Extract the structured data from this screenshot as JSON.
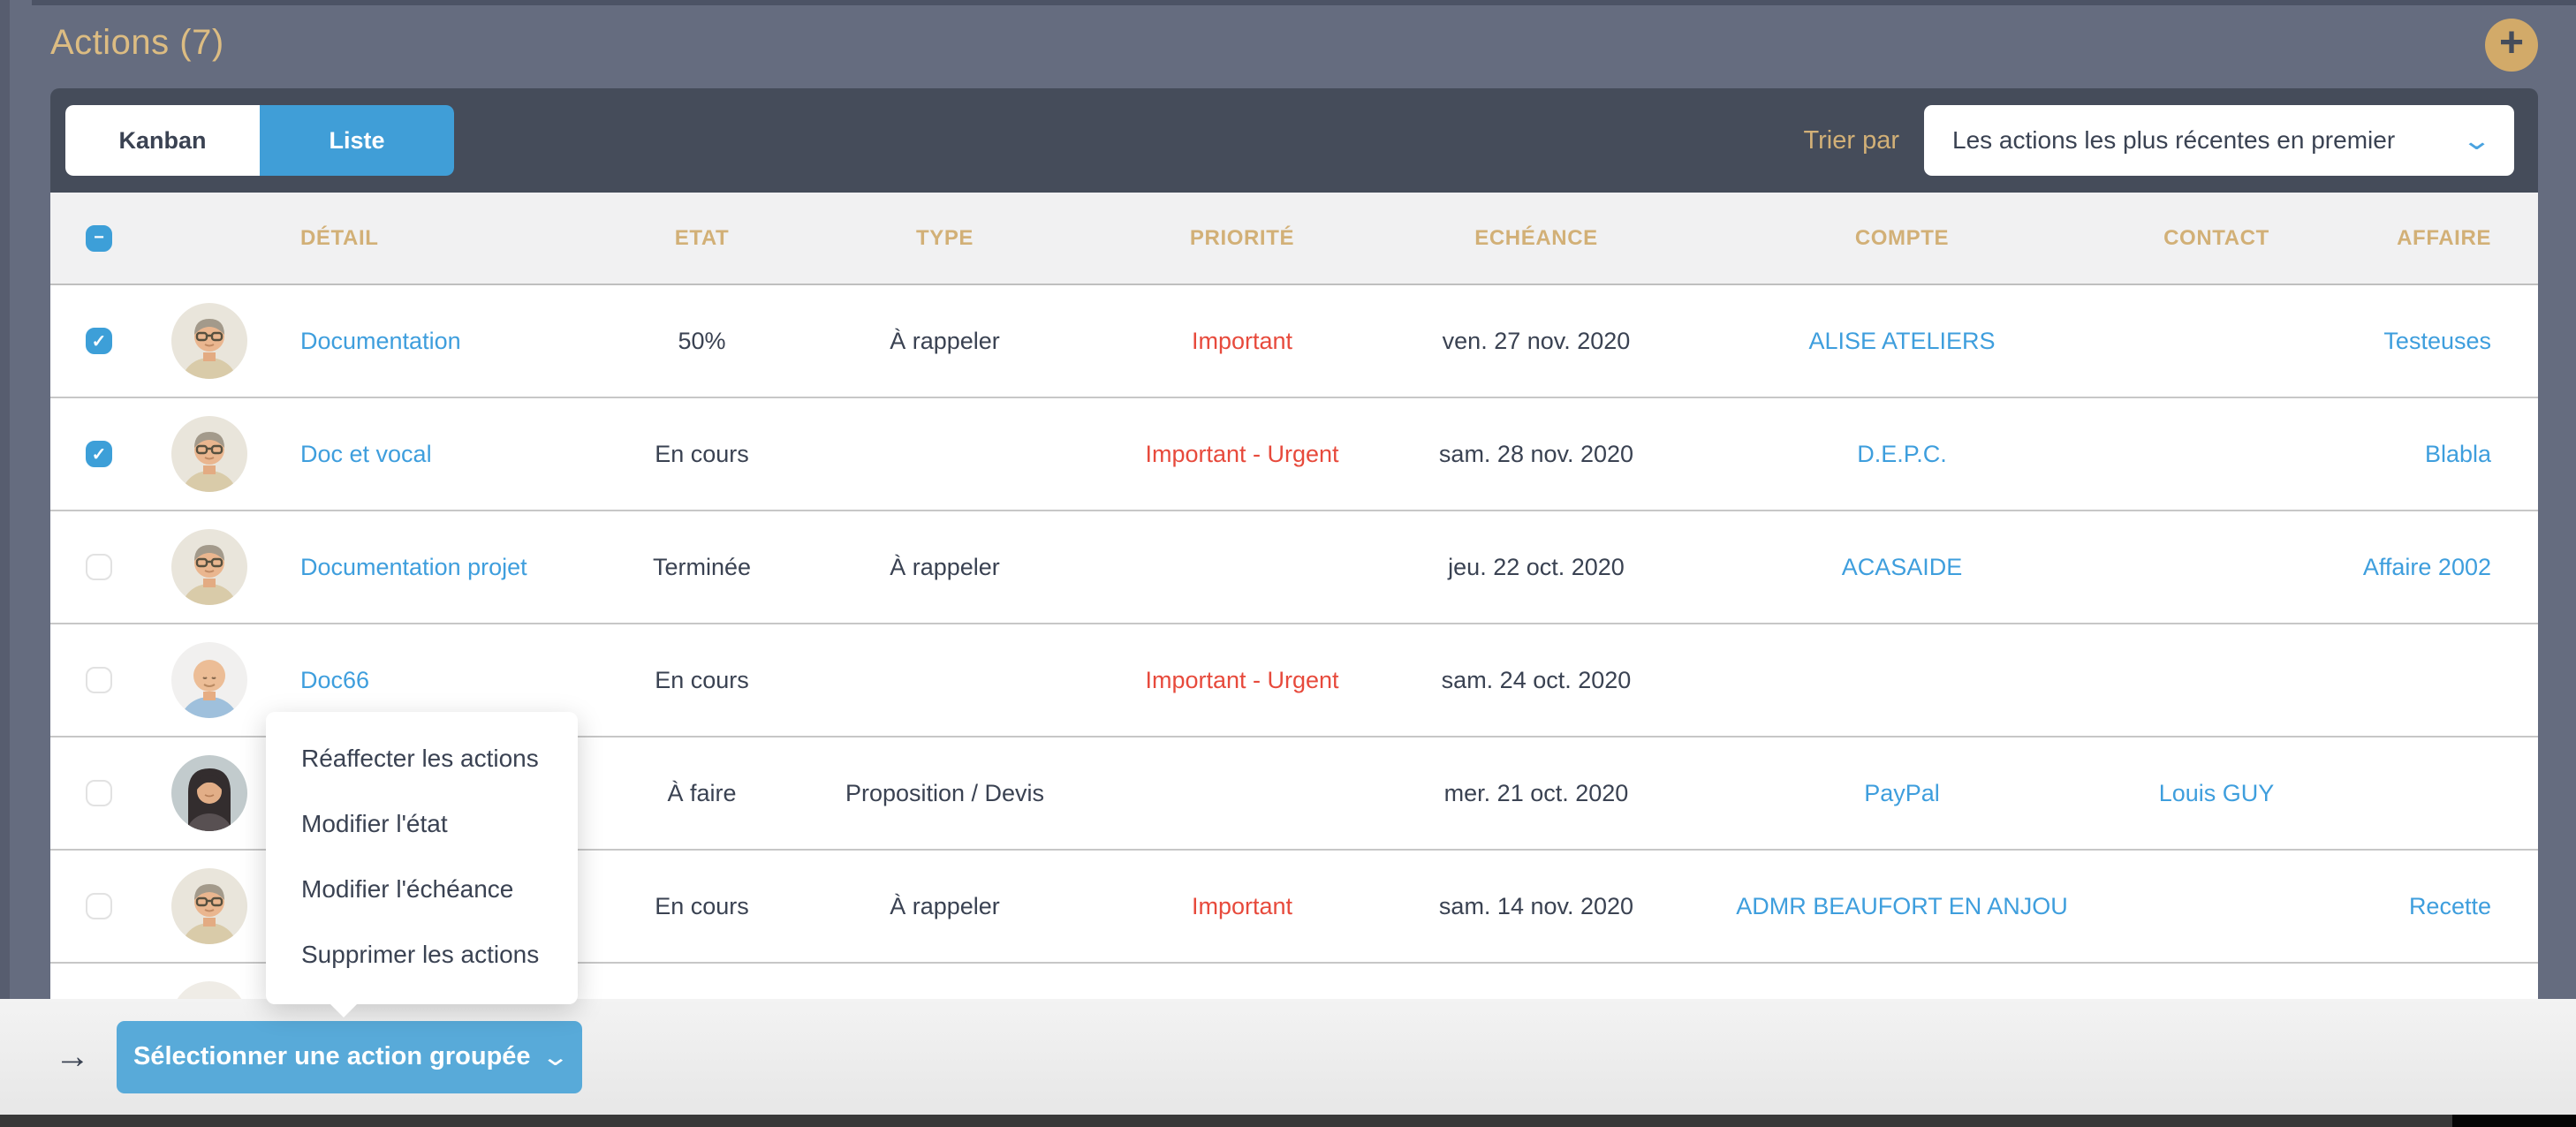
{
  "header": {
    "title": "Actions (7)"
  },
  "icons": {
    "plus_icon": "+",
    "minus_icon": "−",
    "check_icon": "✓",
    "chevron_down_icon": "⌄",
    "arrow_right_icon": "→"
  },
  "toolbar": {
    "tabs": [
      {
        "label": "Kanban",
        "active": false
      },
      {
        "label": "Liste",
        "active": true
      }
    ],
    "sort_label": "Trier par",
    "sort_value": "Les actions les plus récentes en premier"
  },
  "table": {
    "columns": [
      "DÉTAIL",
      "ETAT",
      "TYPE",
      "PRIORITÉ",
      "ECHÉANCE",
      "COMPTE",
      "CONTACT",
      "AFFAIRE"
    ],
    "rows": [
      {
        "checked": true,
        "avatar": "man-glasses",
        "detail": "Documentation",
        "etat": "50%",
        "type": "À rappeler",
        "priorite": "Important",
        "echeance": "ven. 27 nov. 2020",
        "compte": "ALISE ATELIERS",
        "contact": "",
        "affaire": "Testeuses"
      },
      {
        "checked": true,
        "avatar": "man-glasses",
        "detail": "Doc et vocal",
        "etat": "En cours",
        "type": "",
        "priorite": "Important - Urgent",
        "echeance": "sam. 28 nov. 2020",
        "compte": "D.E.P.C.",
        "contact": "",
        "affaire": "Blabla"
      },
      {
        "checked": false,
        "avatar": "man-glasses",
        "detail": "Documentation projet",
        "etat": "Terminée",
        "type": "À rappeler",
        "priorite": "",
        "echeance": "jeu. 22 oct. 2020",
        "compte": "ACASAIDE",
        "contact": "",
        "affaire": "Affaire 2002"
      },
      {
        "checked": false,
        "avatar": "man-bald",
        "detail": "Doc66",
        "etat": "En cours",
        "type": "",
        "priorite": "Important - Urgent",
        "echeance": "sam. 24 oct. 2020",
        "compte": "",
        "contact": "",
        "affaire": ""
      },
      {
        "checked": false,
        "avatar": "woman-dark-hair",
        "detail": "",
        "etat": "À faire",
        "type": "Proposition / Devis",
        "priorite": "",
        "echeance": "mer. 21 oct. 2020",
        "compte": "PayPal",
        "contact": "Louis GUY",
        "affaire": ""
      },
      {
        "checked": false,
        "avatar": "man-glasses",
        "detail": "",
        "etat": "En cours",
        "type": "À rappeler",
        "priorite": "Important",
        "echeance": "sam. 14 nov. 2020",
        "compte": "ADMR BEAUFORT EN ANJOU",
        "contact": "",
        "affaire": "Recette"
      },
      {
        "checked": false,
        "avatar": "man-partial",
        "detail": "",
        "etat": "",
        "type": "",
        "priorite": "",
        "echeance": "",
        "compte": "",
        "contact": "",
        "affaire": ""
      }
    ]
  },
  "context_menu": {
    "items": [
      "Réaffecter les actions",
      "Modifier l'état",
      "Modifier l'échéance",
      "Supprimer les actions"
    ]
  },
  "footer": {
    "bulk_button": "Sélectionner une action groupée"
  },
  "colors": {
    "accent_gold": "#d2b077",
    "accent_blue": "#409ed7",
    "link_blue": "#3e9edd",
    "priority_red": "#e74a3c",
    "toolbar_dark": "#454c5a",
    "background_slate": "#656c7f"
  }
}
